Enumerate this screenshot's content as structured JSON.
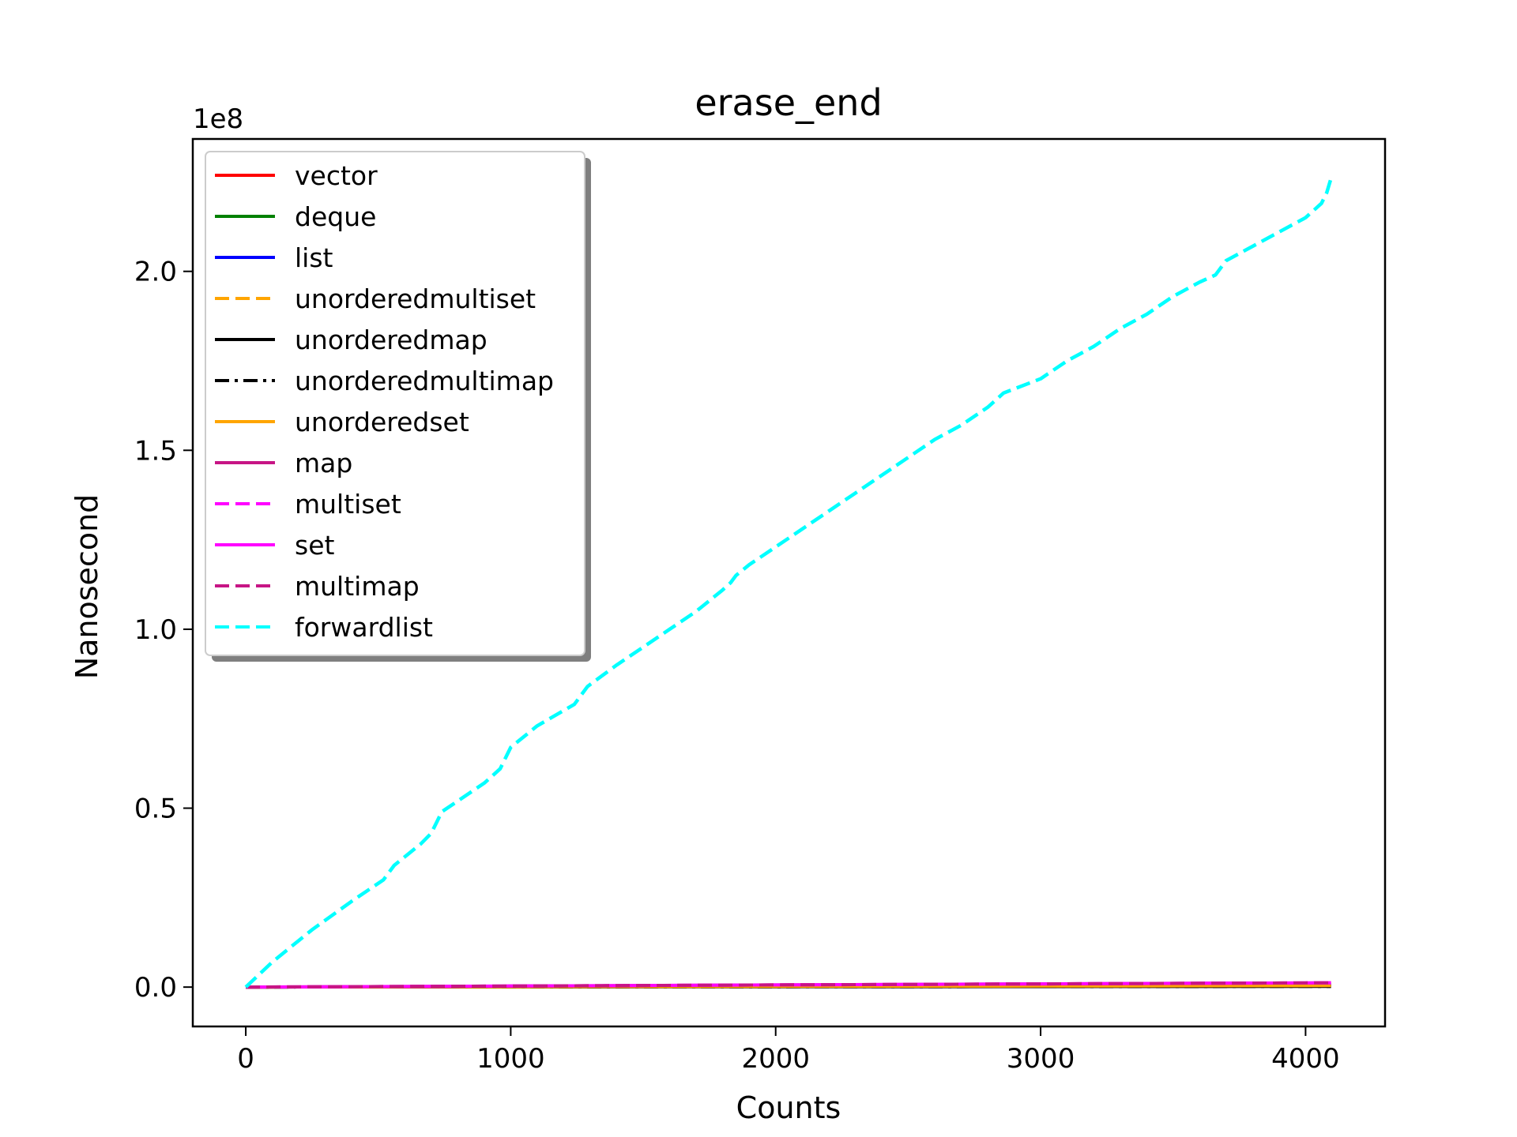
{
  "chart_data": {
    "type": "line",
    "title": "erase_end",
    "xlabel": "Counts",
    "ylabel": "Nanosecond",
    "y_offset_text": "1e8",
    "y_scale": 100000000,
    "xlim": [
      -200,
      4300
    ],
    "ylim": [
      -11000000,
      237000000
    ],
    "x_ticks": [
      0,
      1000,
      2000,
      3000,
      4000
    ],
    "x_tick_labels": [
      "0",
      "1000",
      "2000",
      "3000",
      "4000"
    ],
    "y_ticks": [
      0,
      50000000,
      100000000,
      150000000,
      200000000
    ],
    "y_tick_labels": [
      "0.0",
      "0.5",
      "1.0",
      "1.5",
      "2.0"
    ],
    "grid": false,
    "legend_position": "upper-left",
    "series": [
      {
        "name": "vector",
        "color": "#ff0000",
        "dash": "solid",
        "x": [
          0,
          1000,
          2000,
          3000,
          4096
        ],
        "y": [
          0,
          150000,
          300000,
          450000,
          600000
        ]
      },
      {
        "name": "deque",
        "color": "#008000",
        "dash": "solid",
        "x": [
          0,
          1000,
          2000,
          3000,
          4096
        ],
        "y": [
          0,
          150000,
          300000,
          450000,
          600000
        ]
      },
      {
        "name": "list",
        "color": "#0000ff",
        "dash": "solid",
        "x": [
          0,
          1000,
          2000,
          3000,
          4096
        ],
        "y": [
          0,
          150000,
          300000,
          450000,
          600000
        ]
      },
      {
        "name": "unorderedmultiset",
        "color": "#ffa500",
        "dash": "dashed",
        "x": [
          0,
          1000,
          2000,
          3000,
          4096
        ],
        "y": [
          0,
          100000,
          200000,
          300000,
          400000
        ]
      },
      {
        "name": "unorderedmap",
        "color": "#000000",
        "dash": "solid",
        "x": [
          0,
          1000,
          2000,
          3000,
          4096
        ],
        "y": [
          0,
          50000,
          100000,
          150000,
          200000
        ]
      },
      {
        "name": "unorderedmultimap",
        "color": "#000000",
        "dash": "dashdot",
        "x": [
          0,
          1000,
          2000,
          3000,
          4096
        ],
        "y": [
          0,
          50000,
          100000,
          150000,
          200000
        ]
      },
      {
        "name": "unorderedset",
        "color": "#ffa500",
        "dash": "solid",
        "x": [
          0,
          1000,
          2000,
          3000,
          4096
        ],
        "y": [
          0,
          100000,
          200000,
          300000,
          400000
        ]
      },
      {
        "name": "map",
        "color": "#c71585",
        "dash": "solid",
        "x": [
          0,
          1000,
          2000,
          3000,
          4096
        ],
        "y": [
          0,
          300000,
          600000,
          900000,
          1200000
        ]
      },
      {
        "name": "multiset",
        "color": "#ff00ff",
        "dash": "dashed",
        "x": [
          0,
          1000,
          2000,
          3000,
          4096
        ],
        "y": [
          0,
          300000,
          600000,
          900000,
          1200000
        ]
      },
      {
        "name": "set",
        "color": "#ff00ff",
        "dash": "solid",
        "x": [
          0,
          1000,
          2000,
          3000,
          4096
        ],
        "y": [
          0,
          300000,
          600000,
          900000,
          1200000
        ]
      },
      {
        "name": "multimap",
        "color": "#c71585",
        "dash": "dashed",
        "x": [
          0,
          1000,
          2000,
          3000,
          4096
        ],
        "y": [
          0,
          300000,
          600000,
          900000,
          1200000
        ]
      },
      {
        "name": "forwardlist",
        "color": "#00ffff",
        "dash": "dashed",
        "x": [
          0,
          100,
          200,
          250,
          400,
          520,
          560,
          660,
          700,
          720,
          740,
          900,
          960,
          980,
          1000,
          1100,
          1240,
          1270,
          1290,
          1400,
          1500,
          1600,
          1700,
          1800,
          1830,
          1850,
          1900,
          2000,
          2100,
          2200,
          2300,
          2400,
          2500,
          2600,
          2700,
          2800,
          2830,
          2860,
          3000,
          3100,
          3200,
          3300,
          3400,
          3500,
          3600,
          3660,
          3680,
          3700,
          3800,
          3900,
          4000,
          4060,
          4080,
          4096
        ],
        "y": [
          0,
          7000000,
          13000000,
          16000000,
          24000000,
          30000000,
          34000000,
          40000000,
          43000000,
          46000000,
          49000000,
          57000000,
          61000000,
          64000000,
          67000000,
          73000000,
          79000000,
          82000000,
          84000000,
          90000000,
          95000000,
          100000000,
          105000000,
          111000000,
          113000000,
          115000000,
          118000000,
          123000000,
          128000000,
          133000000,
          138000000,
          143000000,
          148000000,
          153000000,
          157000000,
          162000000,
          164000000,
          166000000,
          170000000,
          175000000,
          179000000,
          184000000,
          188000000,
          193000000,
          197000000,
          199000000,
          201000000,
          203000000,
          207000000,
          211000000,
          215000000,
          219000000,
          222000000,
          226000000
        ]
      }
    ]
  }
}
